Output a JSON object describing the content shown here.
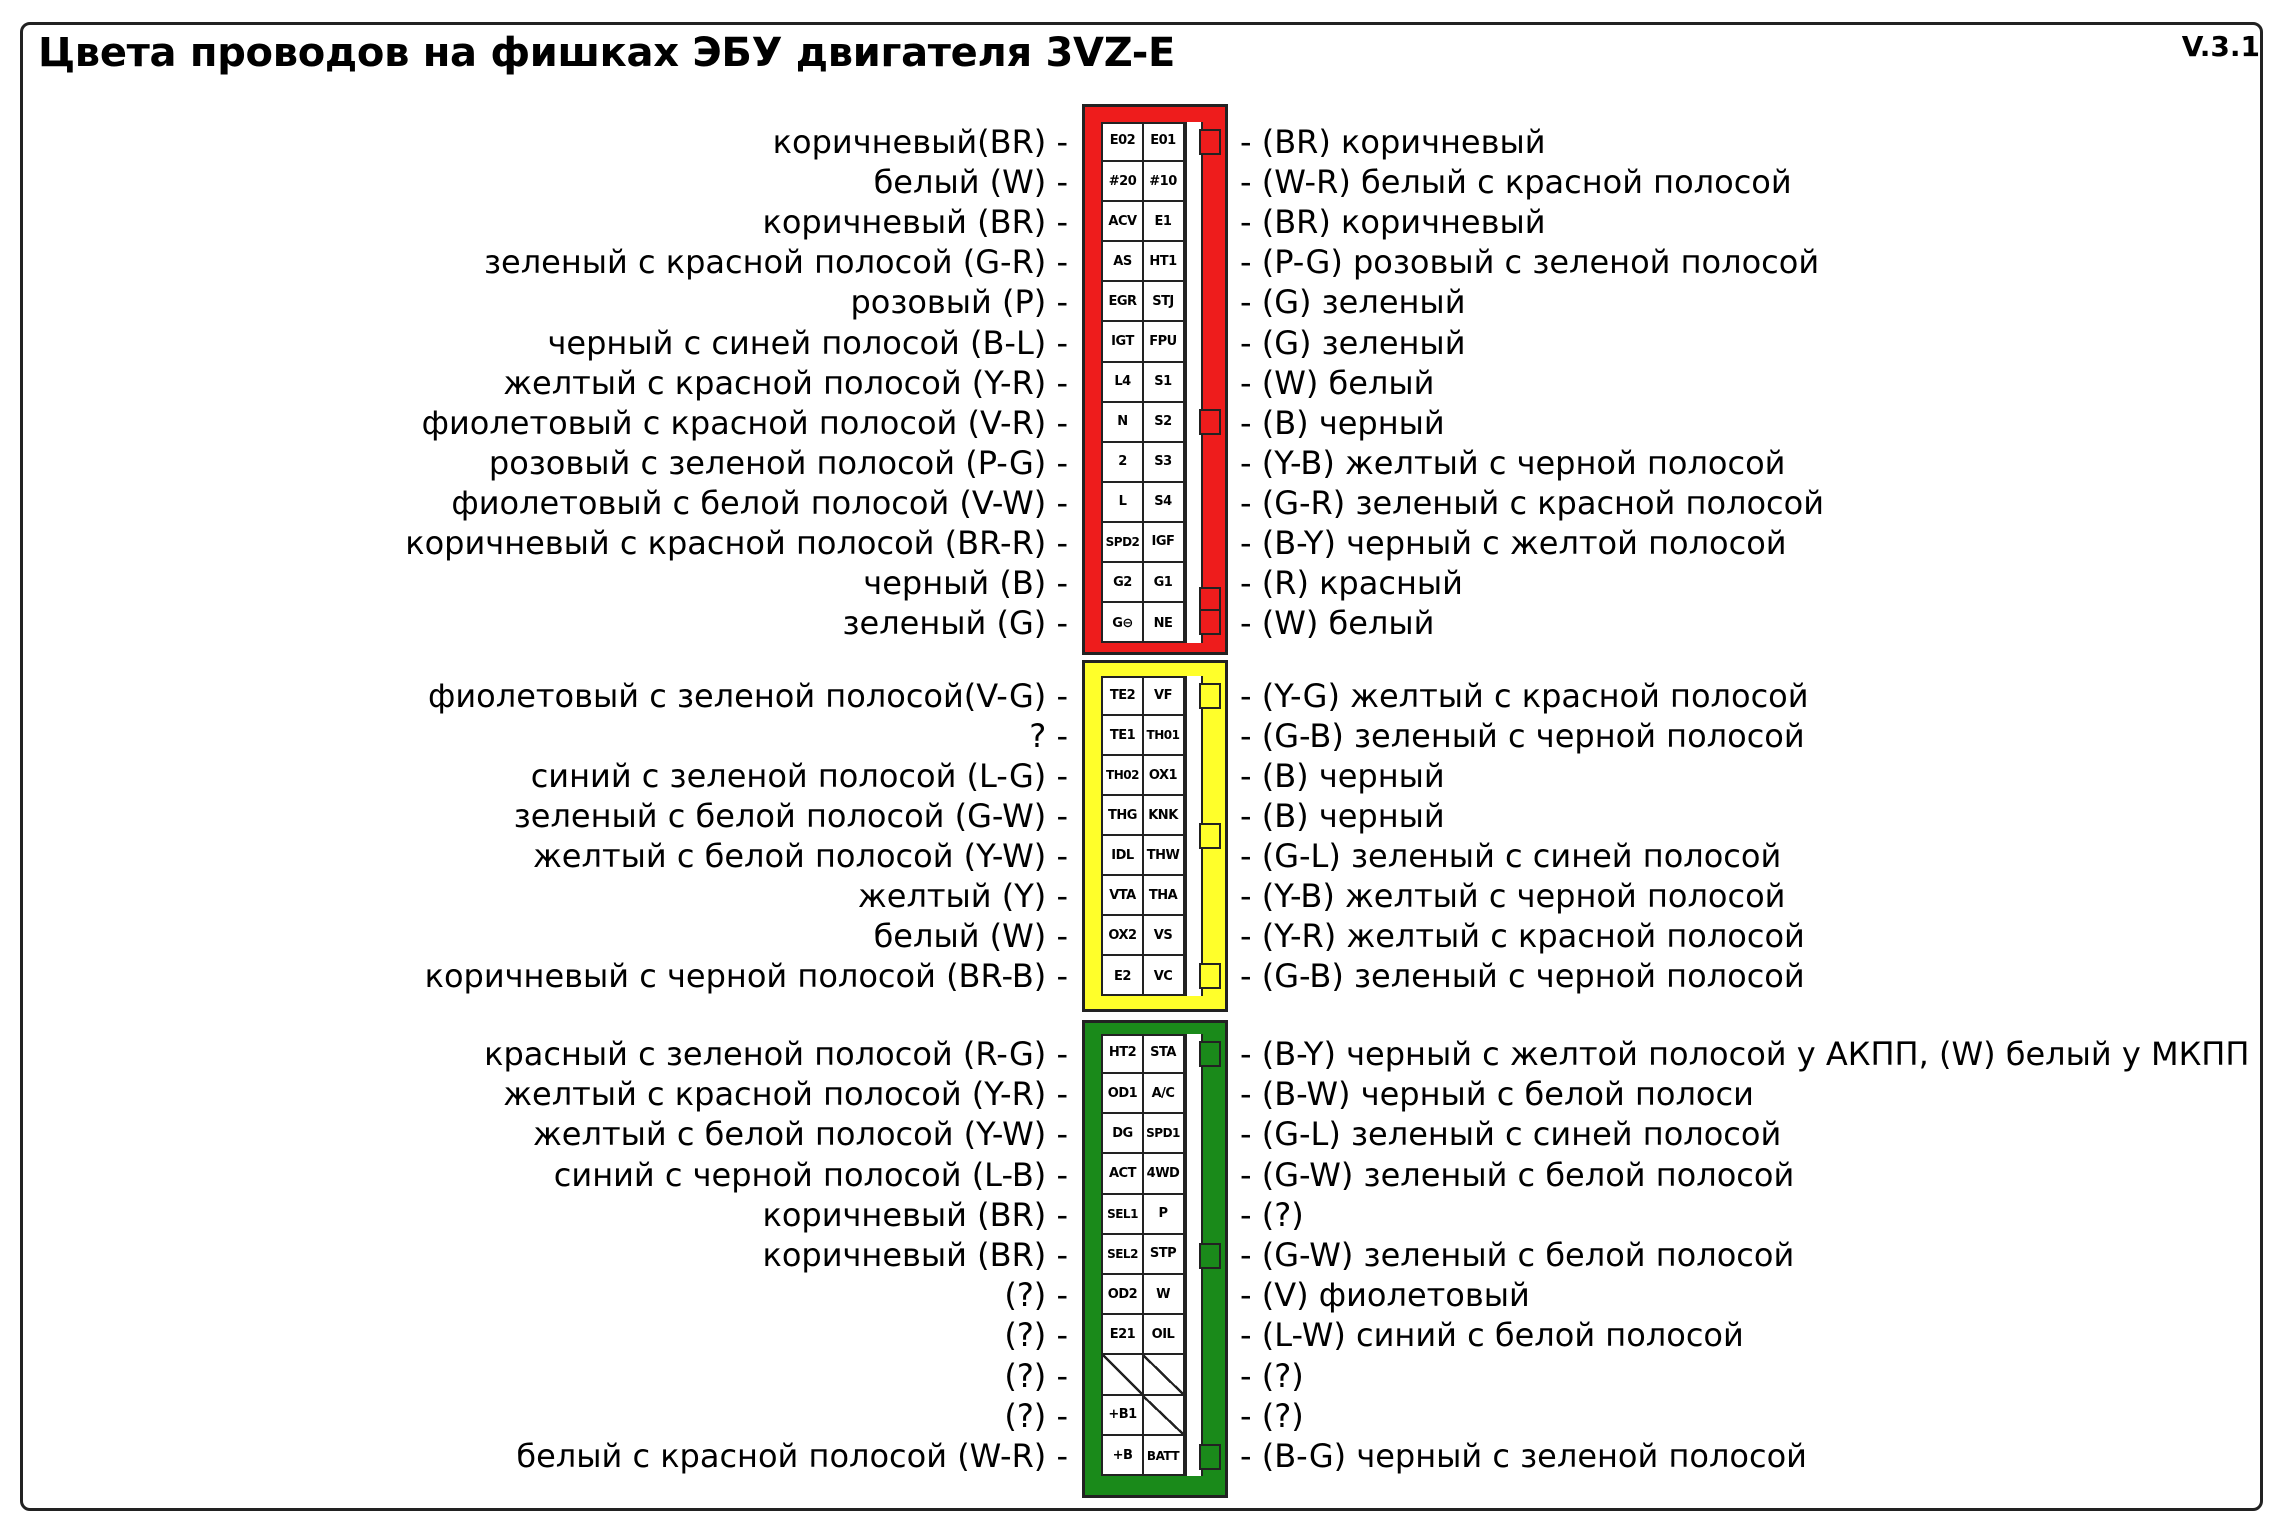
{
  "title": "Цвета проводов на фишках ЭБУ двигателя 3VZ-E",
  "version": "V.3.1",
  "colors": {
    "red": "#ee1c1c",
    "yellow": "#ffff2a",
    "green": "#1a8a1a"
  },
  "connectors": [
    {
      "name": "red-connector",
      "color": "#ee1c1c",
      "rows": [
        {
          "left": "коричневый(BR) -",
          "pins": [
            "E02",
            "E01"
          ],
          "right": "- (BR) коричневый"
        },
        {
          "left": "белый (W) -",
          "pins": [
            "#20",
            "#10"
          ],
          "right": "- (W-R) белый с красной полосой"
        },
        {
          "left": "коричневый (BR) -",
          "pins": [
            "ACV",
            "E1"
          ],
          "right": "- (BR) коричневый"
        },
        {
          "left": "зеленый с красной полосой (G-R) -",
          "pins": [
            "AS",
            "HT1"
          ],
          "right": "- (P-G) розовый с зеленой полосой"
        },
        {
          "left": "розовый (P) -",
          "pins": [
            "EGR",
            "STJ"
          ],
          "right": "- (G) зеленый"
        },
        {
          "left": "черный с синей полосой (B-L) -",
          "pins": [
            "IGT",
            "FPU"
          ],
          "right": "- (G) зеленый"
        },
        {
          "left": "желтый с красной полосой (Y-R) -",
          "pins": [
            "L4",
            "S1"
          ],
          "right": "- (W) белый"
        },
        {
          "left": "фиолетовый с красной полосой (V-R) -",
          "pins": [
            "N",
            "S2"
          ],
          "right": "- (B) черный"
        },
        {
          "left": "розовый с зеленой полосой (P-G) -",
          "pins": [
            "2",
            "S3"
          ],
          "right": "- (Y-B) желтый с черной полосой"
        },
        {
          "left": "фиолетовый с белой полосой (V-W) -",
          "pins": [
            "L",
            "S4"
          ],
          "right": "- (G-R) зеленый с красной полосой"
        },
        {
          "left": "коричневый с красной полосой (BR-R) -",
          "pins": [
            "SPD2",
            "IGF"
          ],
          "right": "- (B-Y) черный с желтой полосой"
        },
        {
          "left": "черный (B) -",
          "pins": [
            "G2",
            "G1"
          ],
          "right": "- (R) красный"
        },
        {
          "left": "зеленый (G) -",
          "pins": [
            "G⊖",
            "NE"
          ],
          "right": "- (W) белый"
        }
      ]
    },
    {
      "name": "yellow-connector",
      "color": "#ffff2a",
      "rows": [
        {
          "left": "фиолетовый с зеленой полосой(V-G) -",
          "pins": [
            "TE2",
            "VF"
          ],
          "right": "- (Y-G) желтый с красной полосой"
        },
        {
          "left": "? -",
          "pins": [
            "TE1",
            "TH01"
          ],
          "right": "- (G-B) зеленый с черной полосой"
        },
        {
          "left": "синий с зеленой полосой (L-G) -",
          "pins": [
            "TH02",
            "OX1"
          ],
          "right": "- (B) черный"
        },
        {
          "left": "зеленый с белой полосой (G-W) -",
          "pins": [
            "THG",
            "KNK"
          ],
          "right": "- (B) черный"
        },
        {
          "left": "желтый с белой полосой (Y-W) -",
          "pins": [
            "IDL",
            "THW"
          ],
          "right": "- (G-L) зеленый с синей полосой"
        },
        {
          "left": "желтый (Y) -",
          "pins": [
            "VTA",
            "THA"
          ],
          "right": "- (Y-B) желтый с черной полосой"
        },
        {
          "left": "белый (W) -",
          "pins": [
            "OX2",
            "VS"
          ],
          "right": "- (Y-R) желтый с красной полосой"
        },
        {
          "left": "коричневый с черной полосой (BR-B) -",
          "pins": [
            "E2",
            "VC"
          ],
          "right": "- (G-B) зеленый с черной полосой"
        }
      ]
    },
    {
      "name": "green-connector",
      "color": "#1a8a1a",
      "rows": [
        {
          "left": "красный с зеленой полосой (R-G) -",
          "pins": [
            "HT2",
            "STA"
          ],
          "right": "- (B-Y) черный с желтой полосой у АКПП, (W) белый у МКПП"
        },
        {
          "left": "желтый с красной полосой (Y-R) -",
          "pins": [
            "OD1",
            "A/C"
          ],
          "right": "- (B-W) черный с белой полоси"
        },
        {
          "left": "желтый с белой полосой (Y-W) -",
          "pins": [
            "DG",
            "SPD1"
          ],
          "right": "- (G-L) зеленый с синей полосой"
        },
        {
          "left": "синий с черной полосой (L-B) -",
          "pins": [
            "ACT",
            "4WD"
          ],
          "right": "- (G-W) зеленый с белой полосой"
        },
        {
          "left": "коричневый (BR) -",
          "pins": [
            "SEL1",
            "P"
          ],
          "right": "- (?)"
        },
        {
          "left": "коричневый (BR) -",
          "pins": [
            "SEL2",
            "STP"
          ],
          "right": "- (G-W) зеленый с белой полосой"
        },
        {
          "left": "(?) -",
          "pins": [
            "OD2",
            "W"
          ],
          "right": "- (V) фиолетовый"
        },
        {
          "left": "(?) -",
          "pins": [
            "E21",
            "OIL"
          ],
          "right": "- (L-W) синий с белой полосой"
        },
        {
          "left": "(?) -",
          "pins": [
            "",
            ""
          ],
          "right": "- (?)"
        },
        {
          "left": "(?) -",
          "pins": [
            "+B1",
            ""
          ],
          "right": "- (?)"
        },
        {
          "left": "белый с красной полосой (W-R) -",
          "pins": [
            "+B",
            "BATT"
          ],
          "right": "- (B-G) черный с зеленой полосой"
        }
      ]
    }
  ]
}
